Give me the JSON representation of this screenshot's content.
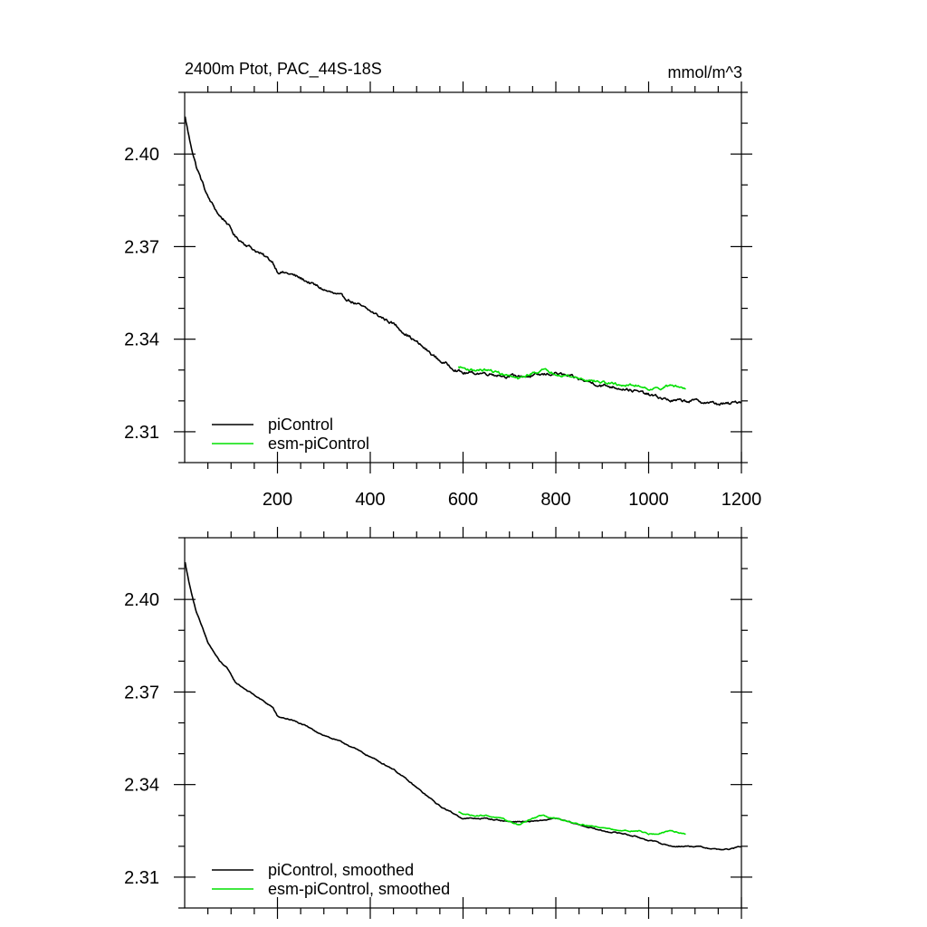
{
  "chart_data": [
    {
      "type": "line",
      "title": "2400m Ptot, PAC_44S-18S",
      "units": "mmol/m^3",
      "xlim": [
        0,
        1200
      ],
      "ylim": [
        2.3,
        2.42
      ],
      "xticks": [
        200,
        400,
        600,
        800,
        1000,
        1200
      ],
      "xticks_labeled": true,
      "yticks": [
        2.31,
        2.34,
        2.37,
        2.4
      ],
      "ytick_labels": [
        "2.31",
        "2.34",
        "2.37",
        "2.40"
      ],
      "series": [
        {
          "name": "piControl",
          "color": "#000000",
          "noise": 0.0008,
          "x": [
            1,
            10,
            25,
            50,
            75,
            90,
            110,
            150,
            190,
            200,
            230,
            260,
            300,
            350,
            400,
            450,
            500,
            550,
            600,
            650,
            700,
            750,
            800,
            850,
            900,
            950,
            1000,
            1050,
            1100,
            1150,
            1175,
            1200
          ],
          "y": [
            2.412,
            2.405,
            2.396,
            2.386,
            2.38,
            2.378,
            2.373,
            2.369,
            2.365,
            2.362,
            2.361,
            2.359,
            2.356,
            2.353,
            2.349,
            2.345,
            2.339,
            2.333,
            2.329,
            2.329,
            2.328,
            2.328,
            2.329,
            2.327,
            2.325,
            2.324,
            2.322,
            2.32,
            2.32,
            2.319,
            2.319,
            2.32
          ]
        },
        {
          "name": "esm-piControl",
          "color": "#00e000",
          "noise": 0.0007,
          "x": [
            590,
            620,
            650,
            680,
            700,
            720,
            750,
            770,
            800,
            830,
            860,
            900,
            950,
            980,
            1000,
            1020,
            1050,
            1080
          ],
          "y": [
            2.331,
            2.33,
            2.33,
            2.329,
            2.328,
            2.327,
            2.329,
            2.33,
            2.329,
            2.328,
            2.327,
            2.326,
            2.325,
            2.325,
            2.324,
            2.324,
            2.325,
            2.324
          ]
        }
      ]
    },
    {
      "type": "line",
      "title": "",
      "units": "",
      "xlim": [
        0,
        1200
      ],
      "ylim": [
        2.3,
        2.42
      ],
      "xticks": [
        200,
        400,
        600,
        800,
        1000,
        1200
      ],
      "xticks_labeled": false,
      "yticks": [
        2.31,
        2.34,
        2.37,
        2.4
      ],
      "ytick_labels": [
        "2.31",
        "2.34",
        "2.37",
        "2.40"
      ],
      "series": [
        {
          "name": "piControl, smoothed",
          "color": "#000000",
          "noise": 0.0003,
          "x": [
            1,
            10,
            25,
            50,
            75,
            90,
            110,
            150,
            190,
            200,
            230,
            260,
            300,
            350,
            400,
            450,
            500,
            550,
            600,
            650,
            700,
            750,
            800,
            850,
            900,
            950,
            1000,
            1050,
            1100,
            1150,
            1175,
            1200
          ],
          "y": [
            2.412,
            2.405,
            2.396,
            2.386,
            2.38,
            2.378,
            2.373,
            2.369,
            2.365,
            2.362,
            2.361,
            2.359,
            2.356,
            2.353,
            2.349,
            2.345,
            2.339,
            2.333,
            2.329,
            2.329,
            2.328,
            2.328,
            2.329,
            2.327,
            2.325,
            2.324,
            2.322,
            2.32,
            2.32,
            2.319,
            2.319,
            2.32
          ]
        },
        {
          "name": "esm-piControl, smoothed",
          "color": "#00e000",
          "noise": 0.0003,
          "x": [
            590,
            620,
            650,
            680,
            700,
            720,
            750,
            770,
            800,
            830,
            860,
            900,
            950,
            980,
            1000,
            1020,
            1050,
            1080
          ],
          "y": [
            2.331,
            2.33,
            2.33,
            2.329,
            2.328,
            2.327,
            2.329,
            2.33,
            2.329,
            2.328,
            2.327,
            2.326,
            2.325,
            2.325,
            2.324,
            2.324,
            2.325,
            2.324
          ]
        }
      ]
    }
  ]
}
